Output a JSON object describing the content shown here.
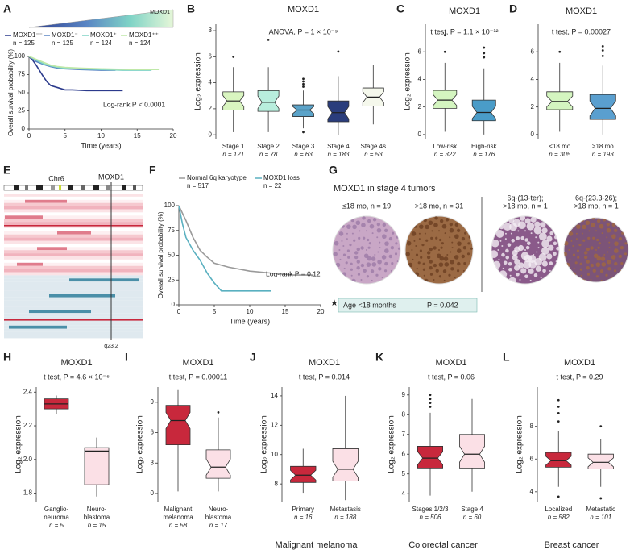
{
  "chart_data": [
    {
      "panel": "A",
      "type": "survival",
      "gradient_label": "MOXD1",
      "annotation": "Log-rank P < 0.0001",
      "xlabel": "Time (years)",
      "ylabel": "Overall survival probability (%)",
      "xlim": [
        0,
        20
      ],
      "xticks": [
        0,
        5,
        10,
        15,
        20
      ],
      "ylim": [
        0,
        100
      ],
      "yticks": [
        0,
        25,
        50,
        75,
        100
      ],
      "series": [
        {
          "name": "MOXD1⁻⁻",
          "n_label": "n = 125",
          "color": "#2b3a8c",
          "x": [
            0,
            0.5,
            1,
            1.5,
            2,
            2.5,
            3,
            4,
            5,
            6,
            8,
            10,
            12,
            13
          ],
          "values": [
            100,
            95,
            88,
            80,
            72,
            65,
            60,
            57,
            54,
            54,
            53,
            53,
            53,
            53
          ]
        },
        {
          "name": "MOXD1⁻",
          "n_label": "n = 125",
          "color": "#5a86c4",
          "x": [
            0,
            0.5,
            1,
            2,
            3,
            4,
            5,
            7,
            10,
            12
          ],
          "values": [
            100,
            97,
            93,
            89,
            86,
            84,
            83,
            82,
            81,
            81
          ]
        },
        {
          "name": "MOXD1⁺",
          "n_label": "n = 124",
          "color": "#7fd3c6",
          "x": [
            0,
            0.5,
            1,
            2,
            3,
            4,
            5,
            7,
            10,
            13,
            17
          ],
          "values": [
            100,
            98,
            95,
            90,
            87,
            85,
            84,
            83,
            82,
            81,
            81
          ]
        },
        {
          "name": "MOXD1⁺⁺",
          "n_label": "n = 124",
          "color": "#bfe8a8",
          "x": [
            0,
            0.5,
            1,
            2,
            3,
            4,
            5,
            7,
            10,
            14,
            18
          ],
          "values": [
            100,
            98,
            96,
            92,
            88,
            86,
            85,
            84,
            83,
            82,
            82
          ]
        }
      ]
    },
    {
      "panel": "B",
      "type": "box",
      "notch": true,
      "title": "MOXD1",
      "annotation": "ANOVA, P = 1 × 10⁻⁹",
      "ylabel": "Log₂ expression",
      "ylim": [
        -0.3,
        8.5
      ],
      "yticks": [
        0,
        2,
        4,
        6,
        8
      ],
      "categories": [
        "Stage 1",
        "Stage 2",
        "Stage 3",
        "Stage 4",
        "Stage 4s"
      ],
      "n_labels": [
        "n = 121",
        "n = 78",
        "n = 63",
        "n = 183",
        "n = 53"
      ],
      "colors": [
        "#d9f5c0",
        "#b8eedd",
        "#5ba3c9",
        "#2a3d7c",
        "#f5f8ec"
      ],
      "boxes": [
        {
          "min": 0.2,
          "q1": 1.9,
          "median": 2.6,
          "q3": 3.3,
          "max": 5.2,
          "outliers": [
            6.0
          ]
        },
        {
          "min": 0.2,
          "q1": 1.8,
          "median": 2.5,
          "q3": 3.4,
          "max": 5.2,
          "outliers": [
            7.3
          ]
        },
        {
          "min": 0.5,
          "q1": 1.4,
          "median": 1.9,
          "q3": 2.3,
          "max": 3.4,
          "outliers": [
            3.7,
            3.9,
            4.1,
            4.3,
            0.2
          ]
        },
        {
          "min": 0.0,
          "q1": 1.0,
          "median": 1.7,
          "q3": 2.6,
          "max": 4.5,
          "outliers": [
            6.4
          ]
        },
        {
          "min": 0.8,
          "q1": 2.2,
          "median": 2.9,
          "q3": 3.6,
          "max": 5.4,
          "outliers": []
        }
      ]
    },
    {
      "panel": "C",
      "type": "box",
      "notch": true,
      "title": "MOXD1",
      "annotation": "t test, P = 1.1 × 10⁻¹²",
      "ylabel": "Log₂ expression",
      "ylim": [
        -0.3,
        8
      ],
      "yticks": [
        0,
        2,
        4,
        6
      ],
      "categories": [
        "Low-risk",
        "High-risk"
      ],
      "n_labels": [
        "n = 322",
        "n = 176"
      ],
      "colors": [
        "#d4f5c0",
        "#4a9cc8"
      ],
      "boxes": [
        {
          "min": 0.2,
          "q1": 1.9,
          "median": 2.5,
          "q3": 3.2,
          "max": 5.2,
          "outliers": [
            6.0,
            7.2
          ]
        },
        {
          "min": 0.0,
          "q1": 1.0,
          "median": 1.6,
          "q3": 2.5,
          "max": 4.8,
          "outliers": [
            5.6,
            5.9,
            6.3
          ]
        }
      ]
    },
    {
      "panel": "D",
      "type": "box",
      "notch": true,
      "title": "MOXD1",
      "annotation": "t test, P = 0.00027",
      "ylim": [
        -0.3,
        8
      ],
      "yticks": [
        0,
        2,
        4,
        6
      ],
      "categories": [
        "<18 mo",
        ">18 mo"
      ],
      "n_labels": [
        "n = 305",
        "n = 193"
      ],
      "colors": [
        "#d4f5c0",
        "#5a9fcf"
      ],
      "boxes": [
        {
          "min": 0.2,
          "q1": 1.8,
          "median": 2.4,
          "q3": 3.1,
          "max": 5.2,
          "outliers": [
            6.0
          ]
        },
        {
          "min": 0.0,
          "q1": 1.1,
          "median": 1.9,
          "q3": 2.9,
          "max": 5.0,
          "outliers": [
            5.7,
            6.1,
            6.4
          ]
        }
      ]
    },
    {
      "panel": "F",
      "type": "survival",
      "annotation": "Log-rank P = 0.12",
      "xlabel": "Time (years)",
      "ylabel": "Overall survival probability (%)",
      "xlim": [
        0,
        20
      ],
      "xticks": [
        0,
        5,
        10,
        15,
        20
      ],
      "ylim": [
        0,
        100
      ],
      "yticks": [
        0,
        25,
        50,
        75,
        100
      ],
      "series": [
        {
          "name": "Normal 6q karyotype",
          "n_label": "n = 517",
          "color": "#9a9a9a",
          "x": [
            0,
            1,
            2,
            3,
            4,
            5,
            7,
            10,
            13,
            16,
            19
          ],
          "values": [
            100,
            85,
            68,
            55,
            48,
            42,
            38,
            34,
            32,
            30,
            30
          ]
        },
        {
          "name": "MOXD1 loss",
          "n_label": "n = 22",
          "color": "#5ab0c0",
          "x": [
            0,
            0.5,
            1,
            2,
            3,
            4,
            5,
            6,
            8,
            13
          ],
          "values": [
            100,
            82,
            68,
            55,
            45,
            32,
            22,
            14,
            14,
            14
          ]
        }
      ]
    },
    {
      "panel": "H",
      "type": "box",
      "notch": false,
      "title": "MOXD1",
      "annotation": "t test, P = 4.6 × 10⁻⁶",
      "ylabel": "Log₂ expression",
      "ylim": [
        1.75,
        2.43
      ],
      "yticks": [
        {
          "value": 1.8,
          "label": "1.8"
        },
        {
          "value": 2.0,
          "label": "2.0"
        },
        {
          "value": 2.2,
          "label": "2.2"
        },
        {
          "value": 2.4,
          "label": "2.4"
        }
      ],
      "categories": [
        [
          "Ganglio-",
          "neuroma"
        ],
        [
          "Neuro-",
          "blastoma"
        ]
      ],
      "n_labels": [
        "n = 5",
        "n = 15"
      ],
      "colors": [
        "#c8283c",
        "#fbe0e6"
      ],
      "boxes": [
        {
          "min": 2.27,
          "q1": 2.3,
          "median": 2.33,
          "q3": 2.36,
          "max": 2.38,
          "outliers": []
        },
        {
          "min": 1.78,
          "q1": 1.85,
          "median": 2.05,
          "q3": 2.07,
          "max": 2.13,
          "outliers": []
        }
      ]
    },
    {
      "panel": "I",
      "type": "box",
      "notch": true,
      "title": "MOXD1",
      "annotation": "t test, P = 0.00011",
      "ylabel": "Log₂ expression",
      "ylim": [
        -0.8,
        10.5
      ],
      "yticks": [
        0,
        3,
        6,
        9
      ],
      "categories": [
        [
          "Malignant",
          "melanoma"
        ],
        [
          "Neuro-",
          "blastoma"
        ]
      ],
      "n_labels": [
        "n = 58",
        "n = 17"
      ],
      "colors": [
        "#c8283c",
        "#fbe0e6"
      ],
      "boxes": [
        {
          "min": 0.2,
          "q1": 4.8,
          "median": 7.2,
          "q3": 8.7,
          "max": 10.2,
          "outliers": []
        },
        {
          "min": 0.2,
          "q1": 1.5,
          "median": 2.6,
          "q3": 4.3,
          "max": 7.5,
          "outliers": [
            8.0
          ]
        }
      ]
    },
    {
      "panel": "J",
      "type": "box",
      "notch": true,
      "title": "MOXD1",
      "annotation": "t test, P = 0.014",
      "ylabel": "Log₂ expression",
      "footer": "Malignant melanoma",
      "ylim": [
        6.8,
        14.6
      ],
      "yticks": [
        8,
        10,
        12,
        14
      ],
      "categories": [
        "Primary",
        "Metastasis"
      ],
      "n_labels": [
        "n = 16",
        "n = 188"
      ],
      "colors": [
        "#c8283c",
        "#fbe0e6"
      ],
      "boxes": [
        {
          "min": 7.4,
          "q1": 8.1,
          "median": 8.6,
          "q3": 9.2,
          "max": 10.4,
          "outliers": []
        },
        {
          "min": 6.9,
          "q1": 8.2,
          "median": 9.0,
          "q3": 10.4,
          "max": 14.0,
          "outliers": []
        }
      ]
    },
    {
      "panel": "K",
      "type": "box",
      "notch": true,
      "title": "MOXD1",
      "annotation": "t test, P = 0.06",
      "ylabel": "Log₂ expression",
      "footer": "Colorectal cancer",
      "ylim": [
        3.6,
        9.4
      ],
      "yticks": [
        4,
        5,
        6,
        7,
        8,
        9
      ],
      "categories": [
        "Stages 1/2/3",
        "Stage 4"
      ],
      "n_labels": [
        "n = 506",
        "n = 60"
      ],
      "colors": [
        "#c8283c",
        "#fbe0e6"
      ],
      "boxes": [
        {
          "min": 3.9,
          "q1": 5.3,
          "median": 5.8,
          "q3": 6.4,
          "max": 8.1,
          "outliers": [
            8.4,
            8.6,
            8.8,
            9.0
          ]
        },
        {
          "min": 4.1,
          "q1": 5.3,
          "median": 6.0,
          "q3": 7.0,
          "max": 8.8,
          "outliers": []
        }
      ]
    },
    {
      "panel": "L",
      "type": "box",
      "notch": true,
      "title": "MOXD1",
      "annotation": "t test, P = 0.29",
      "ylabel": "Log₂ expression",
      "footer": "Breast cancer",
      "ylim": [
        3.4,
        10.4
      ],
      "yticks": [
        4,
        6,
        8
      ],
      "categories": [
        "Localized",
        "Metastatic"
      ],
      "n_labels": [
        "n = 582",
        "n = 101"
      ],
      "colors": [
        "#c8283c",
        "#fbe0e6"
      ],
      "boxes": [
        {
          "min": 4.3,
          "q1": 5.5,
          "median": 5.9,
          "q3": 6.4,
          "max": 7.7,
          "outliers": [
            8.3,
            8.8,
            9.2,
            9.6,
            3.7
          ]
        },
        {
          "min": 4.3,
          "q1": 5.4,
          "median": 5.8,
          "q3": 6.3,
          "max": 7.2,
          "outliers": [
            8.0,
            3.6
          ]
        }
      ]
    }
  ],
  "panel_e": {
    "letter": "E",
    "chromosome": "Chr6",
    "gene": "MOXD1",
    "band": "q23.2"
  },
  "panel_g": {
    "letter": "G",
    "title": "MOXD1 in stage 4 tumors",
    "images": [
      [
        "≤18 mo, n = 19"
      ],
      [
        ">18 mo, n = 31"
      ],
      [
        "6q-(13-ter);",
        ">18 mo, n = 1"
      ],
      [
        "6q-(23.3-26);",
        ">18 mo, n = 1"
      ]
    ],
    "star": "★",
    "note_label": "Age <18 months",
    "note_p": "P = 0.042"
  }
}
